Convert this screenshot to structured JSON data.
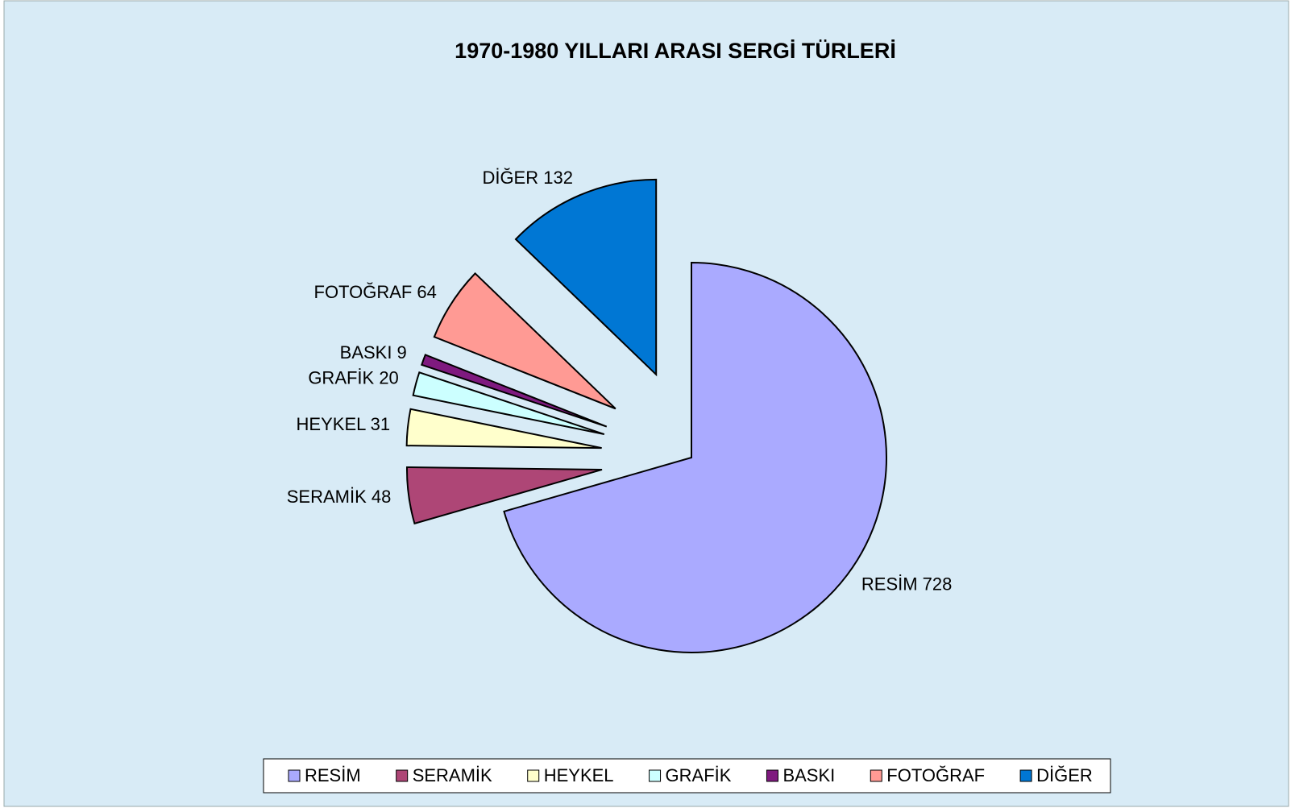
{
  "chart_data": {
    "type": "pie",
    "title": "1970-1980 YILLARI ARASI SERGİ TÜRLERİ",
    "categories": [
      "RESİM",
      "SERAMİK",
      "HEYKEL",
      "GRAFİK",
      "BASKI",
      "FOTOĞRAF",
      "DİĞER"
    ],
    "values": [
      728,
      48,
      31,
      20,
      9,
      64,
      132
    ],
    "value_labels": [
      "RESİM 728",
      "SERAMİK 48",
      "HEYKEL 31",
      "GRAFİK 20",
      "BASKI 9",
      "FOTOĞRAF 64",
      "DİĞER 132"
    ],
    "colors": [
      "#aaaaff",
      "#ae4676",
      "#ffffcc",
      "#ccffff",
      "#7f1a7f",
      "#ff9a94",
      "#0077d4"
    ],
    "exploded": [
      false,
      true,
      true,
      true,
      true,
      true,
      true
    ],
    "legend": "bottom"
  }
}
